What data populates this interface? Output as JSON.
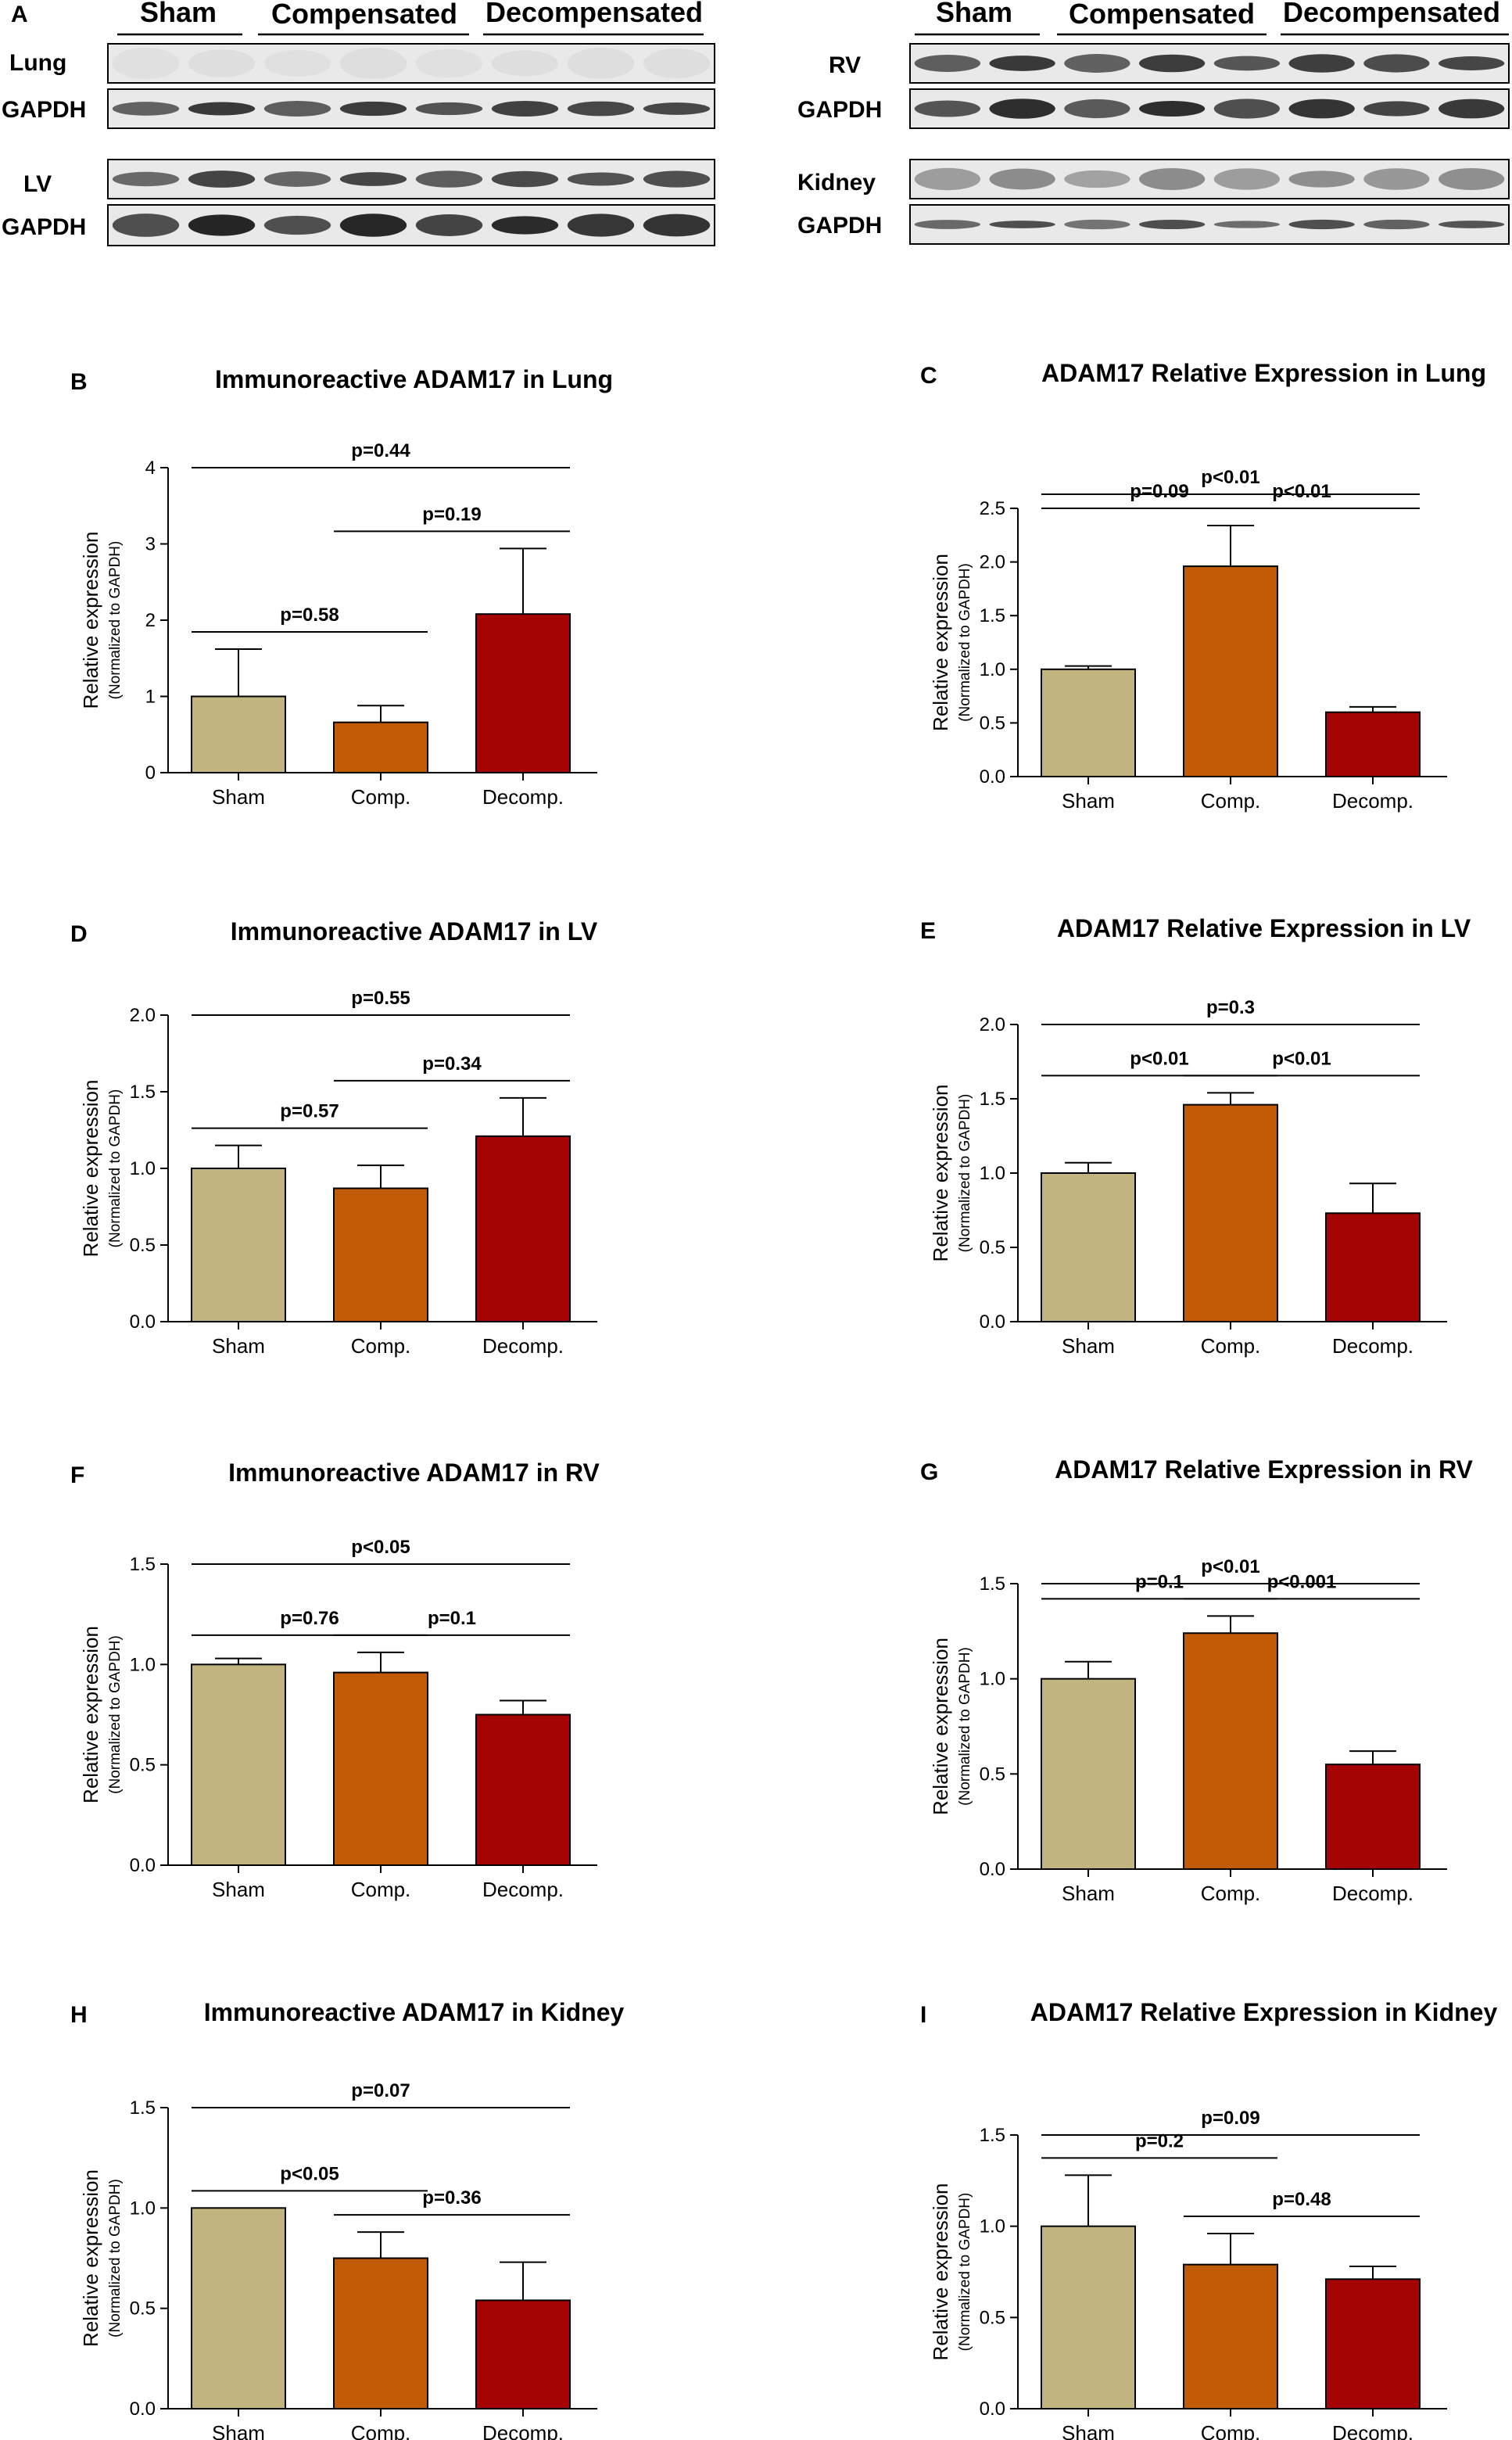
{
  "blots": {
    "panel_letter": "A",
    "group_headers": [
      "Sham",
      "Compensated",
      "Decompensated"
    ],
    "left": [
      {
        "label": "Lung",
        "loading_label": "GAPDH"
      },
      {
        "label": "LV",
        "loading_label": "GAPDH"
      }
    ],
    "right": [
      {
        "label": "RV",
        "loading_label": "GAPDH"
      },
      {
        "label": "Kidney",
        "loading_label": "GAPDH"
      }
    ]
  },
  "colors": {
    "sham": "#c2b47e",
    "comp": "#c05a05",
    "decomp": "#a50404"
  },
  "chart_data": [
    {
      "panel": "B",
      "type": "bar",
      "title": "Immunoreactive ADAM17 in Lung",
      "ylabel": "Relative expression",
      "ylabel_sub": "(Normalized to GAPDH)",
      "categories": [
        "Sham",
        "Comp.",
        "Decomp."
      ],
      "values": [
        1.0,
        0.66,
        2.08
      ],
      "errors": [
        0.62,
        0.22,
        0.86
      ],
      "ylim": [
        0,
        4
      ],
      "yticks": [
        "0",
        "1",
        "2",
        "3",
        "4"
      ],
      "comparisons": [
        {
          "from": 0,
          "to": 2,
          "label": "p=0.44"
        },
        {
          "from": 1,
          "to": 2,
          "label": "p=0.19"
        },
        {
          "from": 0,
          "to": 1,
          "label": "p=0.58"
        }
      ]
    },
    {
      "panel": "C",
      "type": "bar",
      "title": "ADAM17 Relative Expression in Lung",
      "ylabel": "Relative expression",
      "ylabel_sub": "(Normalized to GAPDH)",
      "categories": [
        "Sham",
        "Comp.",
        "Decomp."
      ],
      "values": [
        1.0,
        1.96,
        0.6
      ],
      "errors": [
        0.03,
        0.38,
        0.05
      ],
      "ylim": [
        0,
        2.5
      ],
      "yticks": [
        "0.0",
        "0.5",
        "1.0",
        "1.5",
        "2.0",
        "2.5"
      ],
      "comparisons": [
        {
          "from": 0,
          "to": 2,
          "label": "p<0.01"
        },
        {
          "from": 0,
          "to": 1,
          "label": "p=0.09"
        },
        {
          "from": 1,
          "to": 2,
          "label": "p<0.01"
        }
      ]
    },
    {
      "panel": "D",
      "type": "bar",
      "title": "Immunoreactive ADAM17 in LV",
      "ylabel": "Relative expression",
      "ylabel_sub": "(Normalized to GAPDH)",
      "categories": [
        "Sham",
        "Comp.",
        "Decomp."
      ],
      "values": [
        1.0,
        0.87,
        1.21
      ],
      "errors": [
        0.15,
        0.15,
        0.25
      ],
      "ylim": [
        0,
        2
      ],
      "yticks": [
        "0.0",
        "0.5",
        "1.0",
        "1.5",
        "2.0"
      ],
      "comparisons": [
        {
          "from": 0,
          "to": 2,
          "label": "p=0.55"
        },
        {
          "from": 1,
          "to": 2,
          "label": "p=0.34"
        },
        {
          "from": 0,
          "to": 1,
          "label": "p=0.57"
        }
      ]
    },
    {
      "panel": "E",
      "type": "bar",
      "title": "ADAM17 Relative Expression in LV",
      "ylabel": "Relative expression",
      "ylabel_sub": "(Normalized to GAPDH)",
      "categories": [
        "Sham",
        "Comp.",
        "Decomp."
      ],
      "values": [
        1.0,
        1.46,
        0.73
      ],
      "errors": [
        0.07,
        0.08,
        0.2
      ],
      "ylim": [
        0,
        2
      ],
      "yticks": [
        "0.0",
        "0.5",
        "1.0",
        "1.5",
        "2.0"
      ],
      "comparisons": [
        {
          "from": 0,
          "to": 2,
          "label": "p=0.3"
        },
        {
          "from": 0,
          "to": 1,
          "label": "p<0.01"
        },
        {
          "from": 1,
          "to": 2,
          "label": "p<0.01"
        }
      ]
    },
    {
      "panel": "F",
      "type": "bar",
      "title": "Immunoreactive ADAM17 in RV",
      "ylabel": "Relative expression",
      "ylabel_sub": "(Normalized to GAPDH)",
      "categories": [
        "Sham",
        "Comp.",
        "Decomp."
      ],
      "values": [
        1.0,
        0.96,
        0.75
      ],
      "errors": [
        0.03,
        0.1,
        0.07
      ],
      "ylim": [
        0,
        1.5
      ],
      "yticks": [
        "0.0",
        "0.5",
        "1.0",
        "1.5"
      ],
      "comparisons": [
        {
          "from": 0,
          "to": 2,
          "label": "p<0.05"
        },
        {
          "from": 0,
          "to": 1,
          "label": "p=0.76"
        },
        {
          "from": 1,
          "to": 2,
          "label": "p=0.1"
        }
      ]
    },
    {
      "panel": "G",
      "type": "bar",
      "title": "ADAM17 Relative Expression in RV",
      "ylabel": "Relative expression",
      "ylabel_sub": "(Normalized to GAPDH)",
      "categories": [
        "Sham",
        "Comp.",
        "Decomp."
      ],
      "values": [
        1.0,
        1.24,
        0.55
      ],
      "errors": [
        0.09,
        0.09,
        0.07
      ],
      "ylim": [
        0,
        1.5
      ],
      "yticks": [
        "0.0",
        "0.5",
        "1.0",
        "1.5"
      ],
      "comparisons": [
        {
          "from": 0,
          "to": 2,
          "label": "p<0.01"
        },
        {
          "from": 0,
          "to": 1,
          "label": "p=0.1"
        },
        {
          "from": 1,
          "to": 2,
          "label": "p<0.001"
        }
      ]
    },
    {
      "panel": "H",
      "type": "bar",
      "title": "Immunoreactive ADAM17 in Kidney",
      "ylabel": "Relative expression",
      "ylabel_sub": "(Normalized to GAPDH)",
      "categories": [
        "Sham",
        "Comp.",
        "Decomp."
      ],
      "values": [
        1.0,
        0.75,
        0.54
      ],
      "errors": [
        0.0,
        0.13,
        0.19
      ],
      "ylim": [
        0,
        1.5
      ],
      "yticks": [
        "0.0",
        "0.5",
        "1.0",
        "1.5"
      ],
      "comparisons": [
        {
          "from": 0,
          "to": 2,
          "label": "p=0.07"
        },
        {
          "from": 0,
          "to": 1,
          "label": "p<0.05"
        },
        {
          "from": 1,
          "to": 2,
          "label": "p=0.36"
        }
      ]
    },
    {
      "panel": "I",
      "type": "bar",
      "title": "ADAM17 Relative Expression in Kidney",
      "ylabel": "Relative expression",
      "ylabel_sub": "(Normalized to GAPDH)",
      "categories": [
        "Sham",
        "Comp.",
        "Decomp."
      ],
      "values": [
        1.0,
        0.79,
        0.71
      ],
      "errors": [
        0.28,
        0.17,
        0.07
      ],
      "ylim": [
        0,
        1.5
      ],
      "yticks": [
        "0.0",
        "0.5",
        "1.0",
        "1.5"
      ],
      "comparisons": [
        {
          "from": 0,
          "to": 2,
          "label": "p=0.09"
        },
        {
          "from": 0,
          "to": 1,
          "label": "p=0.2"
        },
        {
          "from": 1,
          "to": 2,
          "label": "p=0.48"
        }
      ]
    }
  ]
}
